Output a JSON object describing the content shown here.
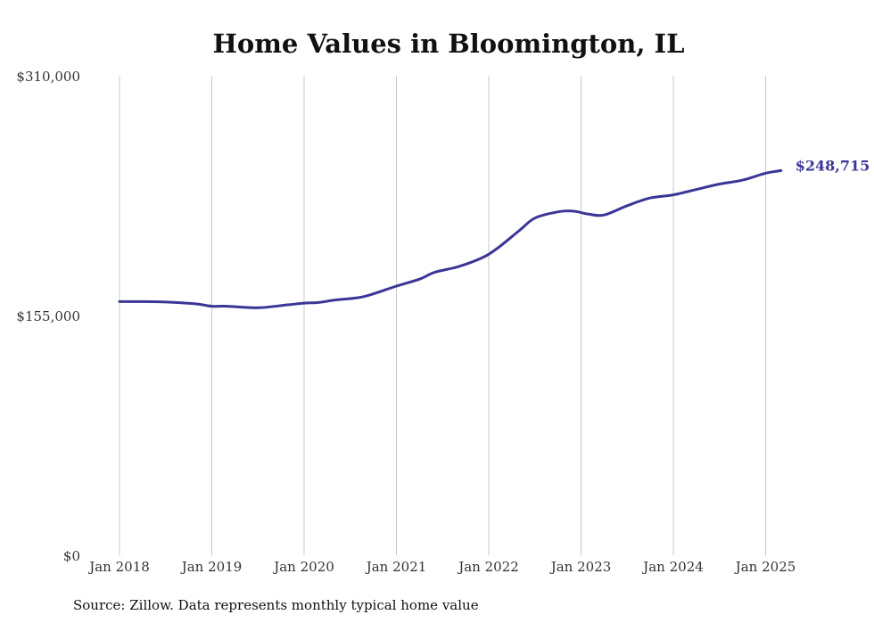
{
  "chart_data": {
    "type": "line",
    "title": "Home Values in Bloomington, IL",
    "source": "Source: Zillow. Data represents monthly typical home value",
    "ylim": [
      0,
      310000
    ],
    "y_ticks": [
      0,
      155000,
      310000
    ],
    "y_tick_labels": [
      "$0",
      "$155,000",
      "$310,000"
    ],
    "x_ticks": [
      "2018-01",
      "2019-01",
      "2020-01",
      "2021-01",
      "2022-01",
      "2023-01",
      "2024-01",
      "2025-01"
    ],
    "x_tick_labels": [
      "Jan 2018",
      "Jan 2019",
      "Jan 2020",
      "Jan 2021",
      "Jan 2022",
      "Jan 2023",
      "Jan 2024",
      "Jan 2025"
    ],
    "grid": "vertical",
    "line_color": "#3a3597",
    "end_label": "$248,715",
    "series": [
      {
        "x": [
          "2018-01",
          "2018-04",
          "2018-08",
          "2018-11",
          "2019-01",
          "2019-03",
          "2019-07",
          "2019-11",
          "2020-01",
          "2020-03",
          "2020-05",
          "2020-08",
          "2020-10",
          "2021-01",
          "2021-04",
          "2021-06",
          "2021-09",
          "2021-12",
          "2022-02",
          "2022-05",
          "2022-07",
          "2022-10",
          "2022-12",
          "2023-02",
          "2023-04",
          "2023-07",
          "2023-10",
          "2024-01",
          "2024-04",
          "2024-07",
          "2024-10",
          "2025-01",
          "2025-03"
        ],
        "values": [
          164000,
          164000,
          163500,
          162500,
          161000,
          161000,
          160000,
          162000,
          163000,
          163500,
          165000,
          166500,
          169000,
          174000,
          178500,
          183000,
          186500,
          192000,
          198000,
          210000,
          218000,
          222000,
          222500,
          220500,
          220000,
          226000,
          231000,
          233000,
          236500,
          240000,
          242500,
          247000,
          248715
        ]
      }
    ]
  }
}
